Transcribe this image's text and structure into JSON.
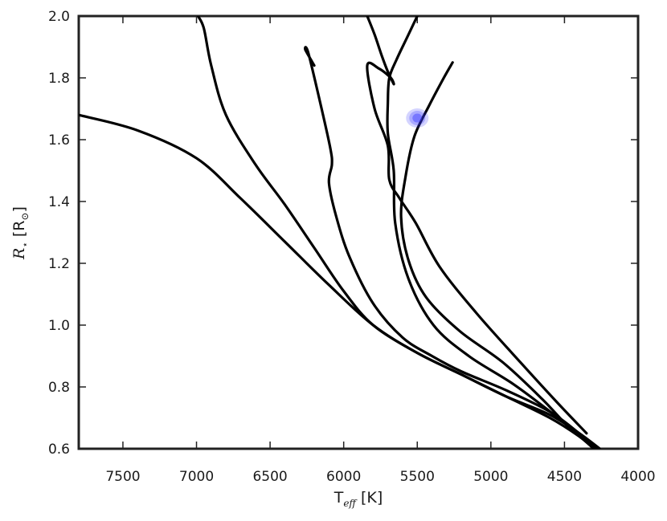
{
  "chart_data": {
    "type": "line",
    "xlabel": {
      "main": "T",
      "sub": "eff",
      "unit": " [K]"
    },
    "ylabel": {
      "main": "R",
      "sub": "⋆",
      "unit_open": " [R",
      "unit_sub": "⊙",
      "unit_close": "]"
    },
    "xlim": [
      7800,
      4000
    ],
    "ylim": [
      0.6,
      2.0
    ],
    "x_ticks": [
      "7500",
      "7000",
      "6500",
      "6000",
      "5500",
      "5000",
      "4500",
      "4000"
    ],
    "y_ticks": [
      "0.6",
      "0.8",
      "1.0",
      "1.2",
      "1.4",
      "1.6",
      "1.8",
      "2.0"
    ],
    "grid": false,
    "line_color": "#000000",
    "marker_color": "#3a3aff",
    "series": [
      {
        "x": [
          7800,
          7400,
          7000,
          6700,
          6400,
          6100,
          5800,
          5500,
          5200,
          4900,
          4600,
          4400,
          4300
        ],
        "y": [
          1.68,
          1.63,
          1.54,
          1.41,
          1.27,
          1.13,
          1.0,
          0.91,
          0.84,
          0.77,
          0.7,
          0.64,
          0.6
        ]
      },
      {
        "x": [
          6990,
          6950,
          6900,
          6800,
          6600,
          6400,
          6200,
          6000,
          5800,
          5500,
          5200,
          4900,
          4600,
          4400,
          4260
        ],
        "y": [
          2.0,
          1.96,
          1.84,
          1.68,
          1.52,
          1.39,
          1.25,
          1.11,
          1.0,
          0.91,
          0.84,
          0.77,
          0.71,
          0.65,
          0.6
        ]
      },
      {
        "x": [
          6200,
          6260,
          6240,
          6150,
          6090,
          6080,
          6100,
          6050,
          5960,
          5800,
          5600,
          5400,
          5200,
          4900,
          4600,
          4400,
          4270
        ],
        "y": [
          1.84,
          1.89,
          1.88,
          1.7,
          1.57,
          1.52,
          1.46,
          1.35,
          1.22,
          1.07,
          0.96,
          0.9,
          0.85,
          0.79,
          0.72,
          0.65,
          0.6
        ]
      },
      {
        "x": [
          5840,
          5790,
          5740,
          5700,
          5660,
          5680,
          5760,
          5840,
          5790,
          5700,
          5690,
          5620,
          5510,
          5350,
          5100,
          4800,
          4550,
          4350
        ],
        "y": [
          2.0,
          1.94,
          1.87,
          1.82,
          1.78,
          1.8,
          1.83,
          1.84,
          1.7,
          1.58,
          1.47,
          1.41,
          1.33,
          1.19,
          1.04,
          0.88,
          0.75,
          0.65
        ]
      },
      {
        "x": [
          5500,
          5570,
          5640,
          5690,
          5700,
          5700,
          5660,
          5650,
          5560,
          5390,
          5150,
          4850,
          4570,
          4420,
          4300
        ],
        "y": [
          2.0,
          1.93,
          1.86,
          1.8,
          1.72,
          1.62,
          1.5,
          1.33,
          1.15,
          1.0,
          0.9,
          0.81,
          0.71,
          0.65,
          0.6
        ]
      },
      {
        "x": [
          5260,
          5320,
          5420,
          5520,
          5580,
          5610,
          5560,
          5440,
          5210,
          4920,
          4650,
          4450,
          4280
        ],
        "y": [
          1.85,
          1.8,
          1.71,
          1.61,
          1.48,
          1.35,
          1.21,
          1.09,
          0.98,
          0.88,
          0.76,
          0.66,
          0.6
        ]
      }
    ],
    "points": [
      {
        "x": 5500,
        "y": 1.67
      }
    ]
  }
}
